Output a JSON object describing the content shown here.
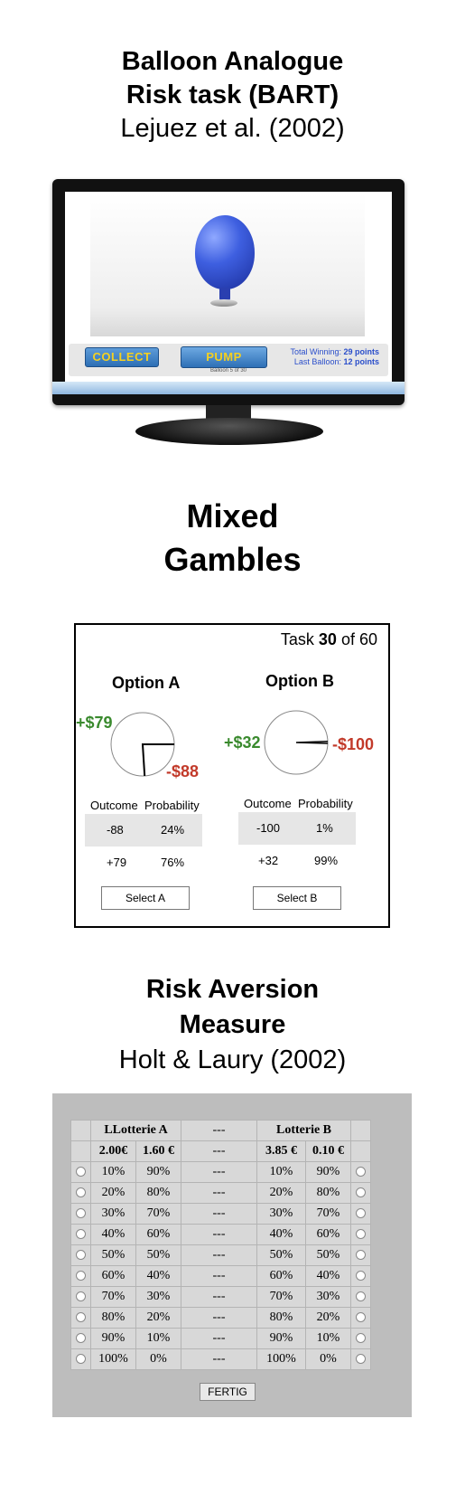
{
  "bart": {
    "title_line1": "Balloon Analogue",
    "title_line2": "Risk task (BART)",
    "citation": "Lejuez et al. (2002)",
    "collect_label": "COLLECT",
    "pump_label": "PUMP",
    "total_winning_label": "Total Winning:",
    "total_winning_value": "29 points",
    "last_balloon_label": "Last Balloon:",
    "last_balloon_value": "12 points",
    "balloon_counter": "Balloon 5 of 30"
  },
  "mixed": {
    "title_line1": "Mixed",
    "title_line2": "Gambles",
    "task_prefix": "Task ",
    "task_number": "30",
    "task_suffix": " of 60",
    "option_a": {
      "title": "Option A",
      "gain_label": "+$79",
      "loss_label": "-$88",
      "col_outcome": "Outcome",
      "col_probability": "Probability",
      "rows": [
        {
          "outcome": "-88",
          "probability": "24%"
        },
        {
          "outcome": "+79",
          "probability": "76%"
        }
      ],
      "button": "Select A",
      "loss_fraction": 0.24
    },
    "option_b": {
      "title": "Option B",
      "gain_label": "+$32",
      "loss_label": "-$100",
      "col_outcome": "Outcome",
      "col_probability": "Probability",
      "rows": [
        {
          "outcome": "-100",
          "probability": "1%"
        },
        {
          "outcome": "+32",
          "probability": "99%"
        }
      ],
      "button": "Select B",
      "loss_fraction": 0.01
    }
  },
  "holt": {
    "title_line1": "Risk Aversion",
    "title_line2": "Measure",
    "citation": "Holt & Laury (2002)",
    "lottery_a": "LLotterie A",
    "lottery_b": "Lotterie B",
    "separator": "---",
    "a_high": "2.00€",
    "a_low": "1.60 €",
    "b_high": "3.85 €",
    "b_low": "0.10 €",
    "rows": [
      [
        "10%",
        "90%",
        "10%",
        "90%"
      ],
      [
        "20%",
        "80%",
        "20%",
        "80%"
      ],
      [
        "30%",
        "70%",
        "30%",
        "70%"
      ],
      [
        "40%",
        "60%",
        "40%",
        "60%"
      ],
      [
        "50%",
        "50%",
        "50%",
        "50%"
      ],
      [
        "60%",
        "40%",
        "60%",
        "40%"
      ],
      [
        "70%",
        "30%",
        "70%",
        "30%"
      ],
      [
        "80%",
        "20%",
        "80%",
        "20%"
      ],
      [
        "90%",
        "10%",
        "90%",
        "10%"
      ],
      [
        "100%",
        "0%",
        "100%",
        "0%"
      ]
    ],
    "submit": "FERTIG"
  }
}
